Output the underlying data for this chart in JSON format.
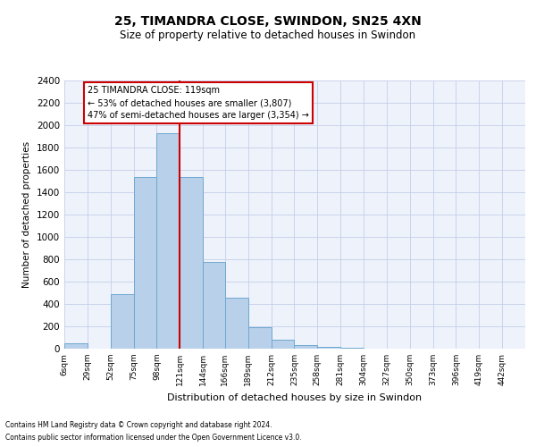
{
  "title": "25, TIMANDRA CLOSE, SWINDON, SN25 4XN",
  "subtitle": "Size of property relative to detached houses in Swindon",
  "xlabel": "Distribution of detached houses by size in Swindon",
  "ylabel": "Number of detached properties",
  "footer_line1": "Contains HM Land Registry data © Crown copyright and database right 2024.",
  "footer_line2": "Contains public sector information licensed under the Open Government Licence v3.0.",
  "property_size": 119,
  "annotation_title": "25 TIMANDRA CLOSE: 119sqm",
  "annotation_line2": "← 53% of detached houses are smaller (3,807)",
  "annotation_line3": "47% of semi-detached houses are larger (3,354) →",
  "bar_edges": [
    6,
    29,
    52,
    75,
    98,
    121,
    144,
    166,
    189,
    212,
    235,
    258,
    281,
    304,
    327,
    350,
    373,
    396,
    419,
    442,
    465
  ],
  "bar_heights": [
    50,
    0,
    490,
    1540,
    1930,
    1540,
    780,
    460,
    190,
    80,
    30,
    20,
    5,
    0,
    0,
    0,
    0,
    0,
    0,
    0
  ],
  "bar_color": "#b8d0ea",
  "bar_edge_color": "#6fa8d0",
  "vline_x": 121,
  "vline_color": "#cc0000",
  "annotation_box_color": "#cc0000",
  "background_color": "#eef2fb",
  "grid_color": "#c5cfe8",
  "ylim": [
    0,
    2400
  ],
  "yticks": [
    0,
    200,
    400,
    600,
    800,
    1000,
    1200,
    1400,
    1600,
    1800,
    2000,
    2200,
    2400
  ],
  "title_fontsize": 10,
  "subtitle_fontsize": 8.5,
  "ylabel_fontsize": 7.5,
  "xlabel_fontsize": 8,
  "ytick_fontsize": 7.5,
  "xtick_fontsize": 6.5,
  "footer_fontsize": 5.5,
  "ann_fontsize": 7
}
